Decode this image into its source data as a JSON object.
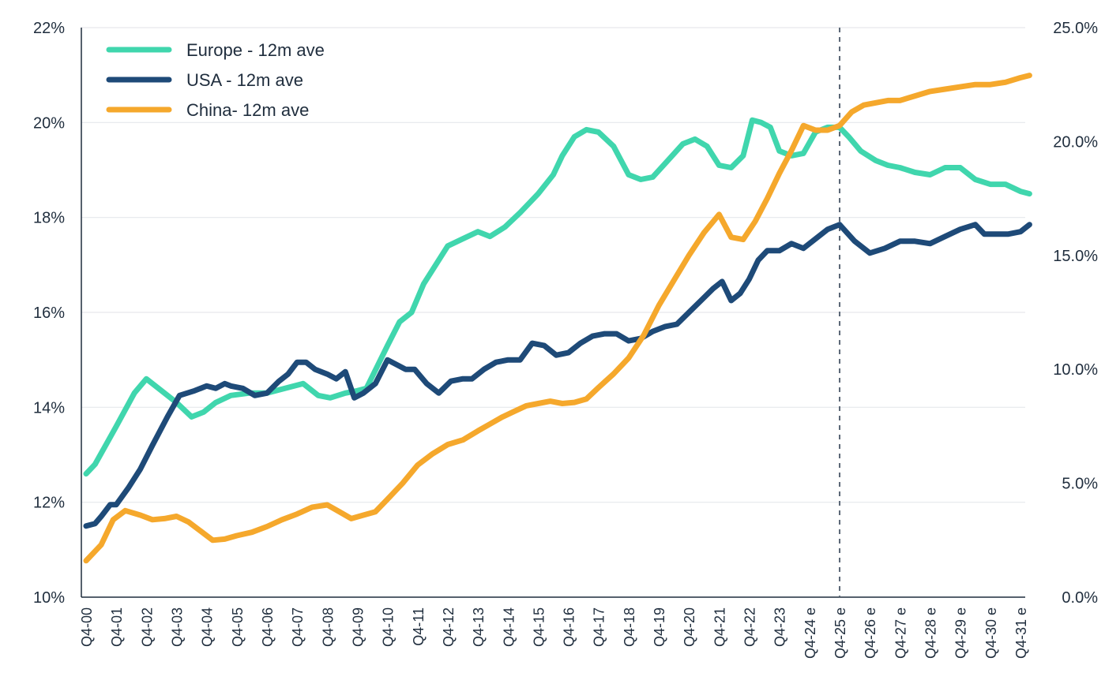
{
  "chart_data": {
    "type": "line",
    "title": "",
    "xlabel": "",
    "ylabel": "",
    "y2label": "",
    "x_labels": [
      "Q4-00",
      "Q4-01",
      "Q4-02",
      "Q4-03",
      "Q4-04",
      "Q4-05",
      "Q4-06",
      "Q4-07",
      "Q4-08",
      "Q4-09",
      "Q4-10",
      "Q4-11",
      "Q4-12",
      "Q4-13",
      "Q4-14",
      "Q4-15",
      "Q4-16",
      "Q4-17",
      "Q4-18",
      "Q4-19",
      "Q4-20",
      "Q4-21",
      "Q4-22",
      "Q4-23",
      "Q4-24 e",
      "Q4-25 e",
      "Q4-26 e",
      "Q4-27 e",
      "Q4-28 e",
      "Q4-29 e",
      "Q4-30 e",
      "Q4-31 e"
    ],
    "ylim_left": [
      10,
      22
    ],
    "left_ticks": [
      "10%",
      "12%",
      "14%",
      "16%",
      "18%",
      "20%",
      "22%"
    ],
    "ylim_right": [
      0,
      25
    ],
    "right_ticks": [
      "0.0%",
      "5.0%",
      "10.0%",
      "15.0%",
      "20.0%",
      "25.0%"
    ],
    "grid": true,
    "forecast_marker_x": "Q4-25 e",
    "legend_position": "top-left",
    "series": [
      {
        "name": "Europe - 12m ave",
        "axis": "left",
        "color": "#40d6ad",
        "x": [
          0,
          0.3,
          1.0,
          1.6,
          2.0,
          2.4,
          3.0,
          3.5,
          3.9,
          4.3,
          4.8,
          5.4,
          6.0,
          6.6,
          7.2,
          7.7,
          8.1,
          8.6,
          9.0,
          9.3,
          10.0,
          10.4,
          10.8,
          11.2,
          11.6,
          12.0,
          12.5,
          13.0,
          13.4,
          13.9,
          14.4,
          15.0,
          15.5,
          15.8,
          16.2,
          16.6,
          17.0,
          17.5,
          18.0,
          18.4,
          18.8,
          19.3,
          19.8,
          20.2,
          20.6,
          21.0,
          21.4,
          21.8,
          22.1,
          22.4,
          22.7,
          23.0,
          23.4,
          23.8,
          24.2,
          24.6,
          25.0,
          25.3,
          25.7,
          26.2,
          26.6,
          27.0,
          27.5,
          28.0,
          28.5,
          29.0,
          29.5,
          30.0,
          30.5,
          31.0,
          31.3
        ],
        "values": [
          12.6,
          12.8,
          13.6,
          14.3,
          14.6,
          14.4,
          14.1,
          13.8,
          13.9,
          14.1,
          14.25,
          14.3,
          14.3,
          14.4,
          14.5,
          14.25,
          14.2,
          14.3,
          14.35,
          14.4,
          15.3,
          15.8,
          16.0,
          16.6,
          17.0,
          17.4,
          17.55,
          17.7,
          17.6,
          17.8,
          18.1,
          18.5,
          18.9,
          19.3,
          19.7,
          19.85,
          19.8,
          19.5,
          18.9,
          18.8,
          18.85,
          19.2,
          19.55,
          19.65,
          19.5,
          19.1,
          19.05,
          19.3,
          20.05,
          20.0,
          19.9,
          19.4,
          19.3,
          19.35,
          19.8,
          19.9,
          19.9,
          19.7,
          19.4,
          19.2,
          19.1,
          19.05,
          18.95,
          18.9,
          19.05,
          19.05,
          18.8,
          18.7,
          18.7,
          18.55,
          18.5
        ]
      },
      {
        "name": "USA - 12m ave",
        "axis": "left",
        "color": "#1e4a78",
        "x": [
          0,
          0.3,
          0.5,
          0.8,
          1.0,
          1.4,
          1.8,
          2.2,
          2.7,
          3.1,
          3.6,
          4.0,
          4.3,
          4.6,
          4.8,
          5.2,
          5.6,
          6.0,
          6.4,
          6.7,
          7.0,
          7.3,
          7.6,
          8.0,
          8.3,
          8.6,
          8.9,
          9.2,
          9.6,
          10.0,
          10.3,
          10.6,
          10.9,
          11.3,
          11.7,
          12.1,
          12.5,
          12.8,
          13.2,
          13.6,
          14.0,
          14.4,
          14.8,
          15.2,
          15.6,
          16.0,
          16.4,
          16.8,
          17.2,
          17.6,
          18.0,
          18.4,
          18.8,
          19.2,
          19.6,
          20.0,
          20.4,
          20.8,
          21.1,
          21.4,
          21.7,
          22.0,
          22.3,
          22.6,
          23.0,
          23.4,
          23.8,
          24.2,
          24.6,
          25.0,
          25.5,
          26.0,
          26.5,
          27.0,
          27.5,
          28.0,
          28.5,
          29.0,
          29.5,
          29.8,
          30.2,
          30.6,
          31.0,
          31.3
        ],
        "values": [
          11.5,
          11.55,
          11.7,
          11.95,
          11.95,
          12.3,
          12.7,
          13.2,
          13.8,
          14.25,
          14.35,
          14.45,
          14.4,
          14.5,
          14.45,
          14.4,
          14.25,
          14.3,
          14.55,
          14.7,
          14.95,
          14.95,
          14.8,
          14.7,
          14.6,
          14.75,
          14.2,
          14.3,
          14.5,
          15.0,
          14.9,
          14.8,
          14.8,
          14.5,
          14.3,
          14.55,
          14.6,
          14.6,
          14.8,
          14.95,
          15.0,
          15.0,
          15.35,
          15.3,
          15.1,
          15.15,
          15.35,
          15.5,
          15.55,
          15.55,
          15.4,
          15.45,
          15.6,
          15.7,
          15.75,
          16.0,
          16.25,
          16.5,
          16.65,
          16.25,
          16.4,
          16.7,
          17.1,
          17.3,
          17.3,
          17.45,
          17.35,
          17.55,
          17.75,
          17.85,
          17.5,
          17.25,
          17.35,
          17.5,
          17.5,
          17.45,
          17.6,
          17.75,
          17.85,
          17.65,
          17.65,
          17.65,
          17.7,
          17.85
        ]
      },
      {
        "name": "China- 12m ave",
        "axis": "right",
        "color": "#f5a82c",
        "x": [
          0,
          0.5,
          0.9,
          1.3,
          1.8,
          2.2,
          2.6,
          3.0,
          3.4,
          3.8,
          4.2,
          4.6,
          5.0,
          5.5,
          6.0,
          6.5,
          7.0,
          7.5,
          8.0,
          8.4,
          8.8,
          9.2,
          9.6,
          10.0,
          10.5,
          11.0,
          11.5,
          12.0,
          12.5,
          13.0,
          13.4,
          13.8,
          14.2,
          14.6,
          15.0,
          15.4,
          15.8,
          16.2,
          16.6,
          17.0,
          17.5,
          18.0,
          18.5,
          19.0,
          19.5,
          20.0,
          20.5,
          21.0,
          21.4,
          21.8,
          22.2,
          22.6,
          23.0,
          23.4,
          23.8,
          24.2,
          24.6,
          25.0,
          25.4,
          25.8,
          26.2,
          26.6,
          27.0,
          27.5,
          28.0,
          28.5,
          29.0,
          29.5,
          30.0,
          30.5,
          31.0,
          31.3
        ],
        "values": [
          1.6,
          2.3,
          3.4,
          3.8,
          3.6,
          3.4,
          3.45,
          3.55,
          3.3,
          2.9,
          2.5,
          2.55,
          2.7,
          2.85,
          3.1,
          3.4,
          3.65,
          3.95,
          4.05,
          3.75,
          3.45,
          3.6,
          3.75,
          4.3,
          5.0,
          5.8,
          6.3,
          6.7,
          6.9,
          7.3,
          7.6,
          7.9,
          8.15,
          8.4,
          8.5,
          8.6,
          8.5,
          8.55,
          8.7,
          9.2,
          9.8,
          10.5,
          11.5,
          12.8,
          13.9,
          15.0,
          16.0,
          16.8,
          15.8,
          15.7,
          16.5,
          17.5,
          18.6,
          19.6,
          20.7,
          20.5,
          20.5,
          20.7,
          21.3,
          21.6,
          21.7,
          21.8,
          21.8,
          22.0,
          22.2,
          22.3,
          22.4,
          22.5,
          22.5,
          22.6,
          22.8,
          22.9
        ]
      }
    ]
  }
}
